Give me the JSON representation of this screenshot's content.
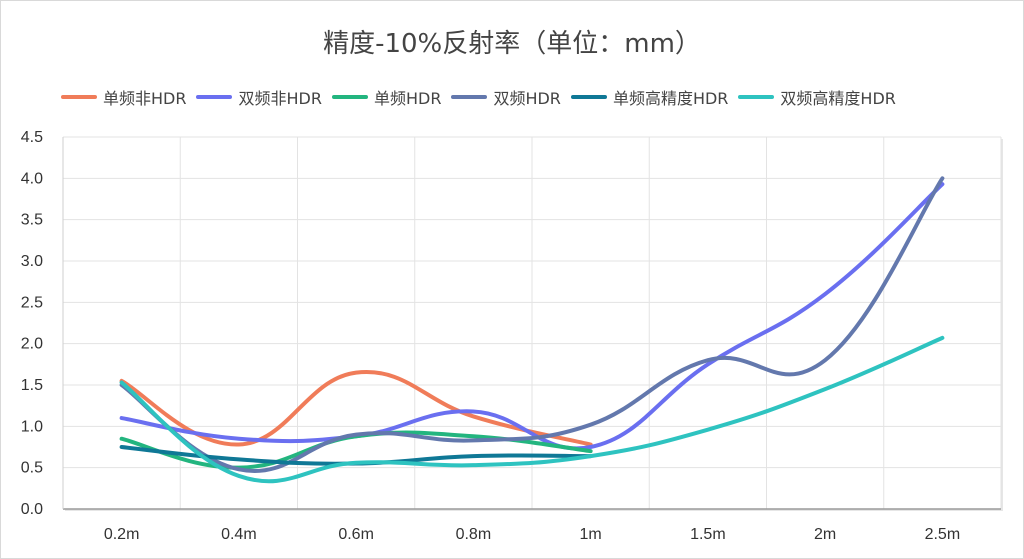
{
  "chart_data": {
    "type": "line",
    "title": "精度-10%反射率（单位：mm）",
    "categories": [
      "0.2m",
      "0.4m",
      "0.6m",
      "0.8m",
      "1m",
      "1.5m",
      "2m",
      "2.5m"
    ],
    "ylim": [
      0,
      4.5
    ],
    "yticks": [
      "0.0",
      "0.5",
      "1.0",
      "1.5",
      "2.0",
      "2.5",
      "3.0",
      "3.5",
      "4.0",
      "4.5"
    ],
    "grid": true,
    "legend_position": "top",
    "series": [
      {
        "name": "单频非HDR",
        "color": "#f07c59",
        "values": [
          1.55,
          0.78,
          1.65,
          1.12,
          0.78,
          null,
          null,
          null
        ]
      },
      {
        "name": "双频非HDR",
        "color": "#6a6ff0",
        "values": [
          1.1,
          0.85,
          0.88,
          1.18,
          0.75,
          1.75,
          2.6,
          3.93
        ]
      },
      {
        "name": "单频HDR",
        "color": "#23b57f",
        "values": [
          0.85,
          0.5,
          0.88,
          0.88,
          0.7,
          null,
          null,
          null
        ]
      },
      {
        "name": "双频HDR",
        "color": "#6378ad",
        "values": [
          1.5,
          0.48,
          0.9,
          0.83,
          1.02,
          1.8,
          1.8,
          4.0
        ]
      },
      {
        "name": "单频高精度HDR",
        "color": "#0f7896",
        "values": [
          0.75,
          0.6,
          0.55,
          0.64,
          0.64,
          null,
          null,
          null
        ]
      },
      {
        "name": "双频高精度HDR",
        "color": "#2ec3c0",
        "values": [
          1.53,
          0.4,
          0.56,
          0.53,
          0.64,
          0.96,
          1.45,
          2.07
        ]
      }
    ]
  }
}
